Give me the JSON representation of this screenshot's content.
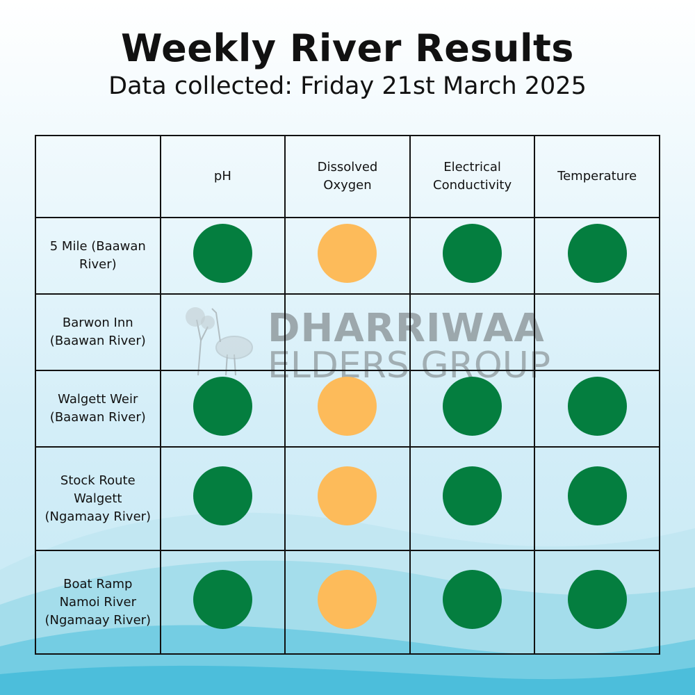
{
  "title": "Weekly River Results",
  "subtitle": "Data collected: Friday 21st March 2025",
  "watermark": {
    "line1": "DHARRIWAA",
    "line2": "ELDERS GROUP",
    "logo": "emu-and-tree-logo"
  },
  "colors": {
    "good": "#047e3f",
    "caution": "#fdbb5a",
    "grid": "#111111"
  },
  "table": {
    "corner": "",
    "headers": [
      {
        "key": "ph",
        "label": "pH"
      },
      {
        "key": "do",
        "label": "Dissolved Oxygen"
      },
      {
        "key": "ec",
        "label": "Electrical Conductivity"
      },
      {
        "key": "temp",
        "label": "Temperature"
      }
    ],
    "rows": [
      {
        "site": "5 Mile (Baawan River)",
        "ph": "good",
        "do": "caution",
        "ec": "good",
        "temp": "good"
      },
      {
        "site": "Barwon Inn (Baawan River)",
        "ph": null,
        "do": null,
        "ec": null,
        "temp": null
      },
      {
        "site": "Walgett Weir (Baawan River)",
        "ph": "good",
        "do": "caution",
        "ec": "good",
        "temp": "good"
      },
      {
        "site": "Stock Route Walgett (Ngamaay River)",
        "ph": "good",
        "do": "caution",
        "ec": "good",
        "temp": "good"
      },
      {
        "site": "Boat Ramp Namoi River (Ngamaay River)",
        "ph": "good",
        "do": "caution",
        "ec": "good",
        "temp": "good"
      }
    ]
  }
}
